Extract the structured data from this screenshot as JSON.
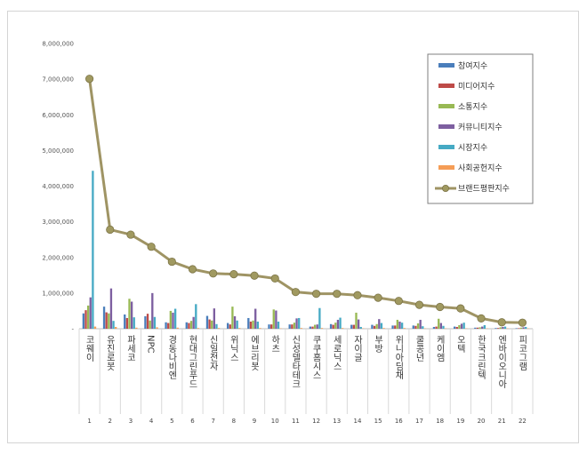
{
  "chart_data": {
    "type": "bar",
    "ylim": [
      0,
      8000000
    ],
    "yticks": [
      "8,000,000",
      "7,000,000",
      "6,000,000",
      "5,000,000",
      "4,000,000",
      "3,000,000",
      "2,000,000",
      "1,000,000",
      "-"
    ],
    "categories": [
      "코웨이",
      "유진로봇",
      "파세코",
      "NPC",
      "경동나비엔",
      "현대그린푸드",
      "신일전자",
      "위닉스",
      "에브리봇",
      "하츠",
      "신성델타테크",
      "쿠쿠홈시스",
      "세로닉스",
      "자이글",
      "부방",
      "위니아딤채",
      "쿨콩년",
      "케이엠",
      "오텍",
      "한국크린텍",
      "엔바이오니아",
      "피코그램"
    ],
    "index": [
      "1",
      "2",
      "3",
      "4",
      "5",
      "6",
      "7",
      "8",
      "9",
      "10",
      "11",
      "12",
      "13",
      "14",
      "15",
      "16",
      "17",
      "18",
      "19",
      "20",
      "21",
      "22"
    ],
    "legend_position": "top-right",
    "series": [
      {
        "name": "참여지수",
        "color": "#4a7ebb",
        "values": [
          430000,
          620000,
          400000,
          350000,
          180000,
          180000,
          360000,
          160000,
          300000,
          120000,
          120000,
          60000,
          130000,
          110000,
          110000,
          90000,
          90000,
          50000,
          60000,
          30000,
          20000,
          15000
        ]
      },
      {
        "name": "미디어지수",
        "color": "#be4b48",
        "values": [
          520000,
          460000,
          300000,
          420000,
          160000,
          160000,
          260000,
          120000,
          200000,
          120000,
          120000,
          60000,
          110000,
          110000,
          80000,
          90000,
          80000,
          60000,
          50000,
          30000,
          20000,
          15000
        ]
      },
      {
        "name": "소통지수",
        "color": "#98b954",
        "values": [
          650000,
          430000,
          840000,
          230000,
          500000,
          220000,
          230000,
          620000,
          230000,
          540000,
          170000,
          110000,
          170000,
          450000,
          130000,
          250000,
          150000,
          280000,
          100000,
          40000,
          40000,
          30000
        ]
      },
      {
        "name": "커뮤니티지수",
        "color": "#7d5fa0",
        "values": [
          880000,
          1130000,
          760000,
          1000000,
          450000,
          330000,
          570000,
          350000,
          560000,
          510000,
          290000,
          120000,
          250000,
          260000,
          270000,
          200000,
          250000,
          160000,
          140000,
          60000,
          50000,
          40000
        ]
      },
      {
        "name": "시장지수",
        "color": "#46aac4",
        "values": [
          4430000,
          220000,
          320000,
          330000,
          560000,
          690000,
          130000,
          230000,
          200000,
          200000,
          300000,
          580000,
          310000,
          50000,
          160000,
          170000,
          70000,
          80000,
          170000,
          100000,
          60000,
          50000
        ]
      },
      {
        "name": "사회공헌지수",
        "color": "#f59d56",
        "values": [
          60000,
          50000,
          30000,
          40000,
          30000,
          20000,
          20000,
          20000,
          20000,
          10000,
          20000,
          20000,
          20000,
          10000,
          20000,
          20000,
          10000,
          10000,
          10000,
          10000,
          10000,
          10000
        ]
      }
    ],
    "line": {
      "name": "브랜드평판지수",
      "color": "#9f9464",
      "marker_color": "#a09960",
      "values": [
        7010000,
        2780000,
        2640000,
        2300000,
        1880000,
        1670000,
        1550000,
        1530000,
        1490000,
        1410000,
        1030000,
        980000,
        980000,
        940000,
        870000,
        780000,
        670000,
        610000,
        570000,
        290000,
        180000,
        170000
      ]
    }
  }
}
